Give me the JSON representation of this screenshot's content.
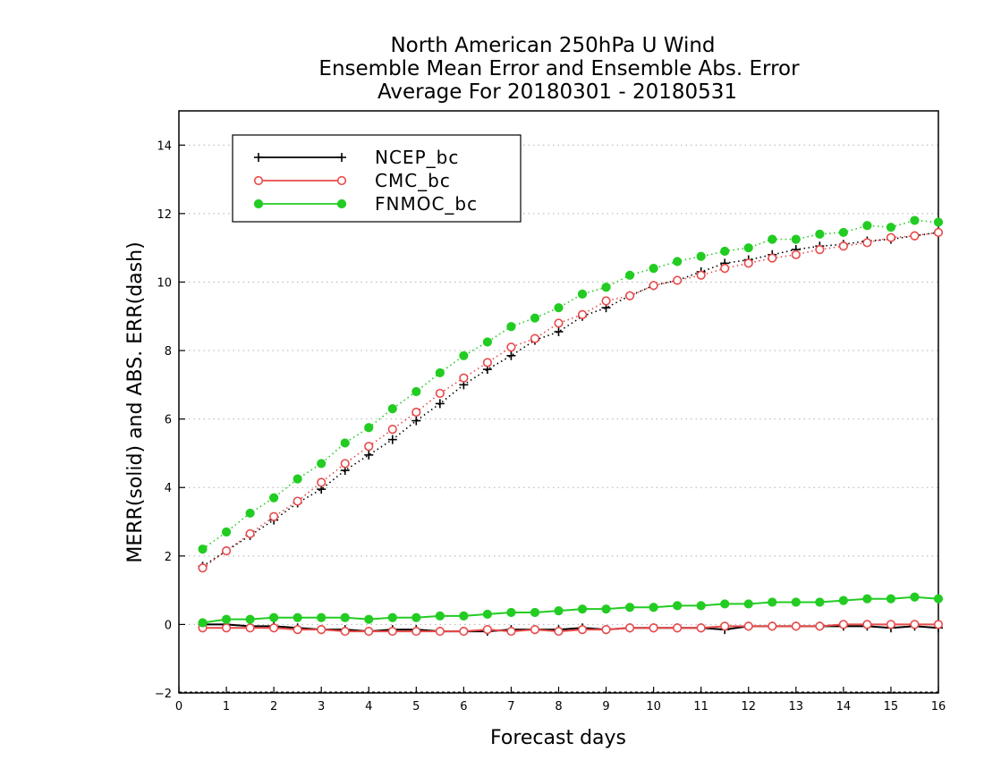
{
  "chart_data": {
    "type": "line",
    "title": [
      "North American 250hPa U Wind",
      "Ensemble Mean Error and Ensemble Abs. Error",
      "Average For 20180301 - 20180531"
    ],
    "xlabel": "Forecast days",
    "ylabel": "MERR(solid) and ABS. ERR(dash)",
    "xlim": [
      0,
      16
    ],
    "ylim": [
      -2,
      15
    ],
    "xticks": [
      "0",
      "1",
      "2",
      "3",
      "4",
      "5",
      "6",
      "7",
      "8",
      "9",
      "10",
      "11",
      "12",
      "13",
      "14",
      "15",
      "16"
    ],
    "yticks": [
      "−2",
      "0",
      "2",
      "4",
      "6",
      "8",
      "10",
      "12",
      "14"
    ],
    "grid": true,
    "legend_position": "top-left",
    "x": [
      0.5,
      1,
      1.5,
      2,
      2.5,
      3,
      3.5,
      4,
      4.5,
      5,
      5.5,
      6,
      6.5,
      7,
      7.5,
      8,
      8.5,
      9,
      9.5,
      10,
      10.5,
      11,
      11.5,
      12,
      12.5,
      13,
      13.5,
      14,
      14.5,
      15,
      15.5,
      16
    ],
    "series": [
      {
        "name": "NCEP_bc",
        "color": "#000000",
        "marker": "plus",
        "abs_err": [
          1.7,
          2.15,
          2.6,
          3.05,
          3.55,
          3.95,
          4.5,
          4.95,
          5.4,
          5.95,
          6.45,
          7.0,
          7.45,
          7.85,
          8.3,
          8.55,
          9.0,
          9.25,
          9.6,
          9.9,
          10.05,
          10.3,
          10.55,
          10.65,
          10.8,
          10.95,
          11.05,
          11.1,
          11.2,
          11.25,
          11.35,
          11.45
        ],
        "mean_err": [
          0.0,
          0.0,
          -0.05,
          -0.05,
          -0.1,
          -0.15,
          -0.15,
          -0.2,
          -0.15,
          -0.15,
          -0.2,
          -0.2,
          -0.2,
          -0.15,
          -0.15,
          -0.15,
          -0.1,
          -0.15,
          -0.1,
          -0.1,
          -0.1,
          -0.1,
          -0.15,
          -0.05,
          -0.05,
          -0.05,
          -0.05,
          -0.05,
          -0.05,
          -0.1,
          -0.05,
          -0.1
        ]
      },
      {
        "name": "CMC_bc",
        "color": "#e84a4a",
        "marker": "open-circle",
        "abs_err": [
          1.65,
          2.15,
          2.65,
          3.15,
          3.6,
          4.15,
          4.7,
          5.2,
          5.7,
          6.2,
          6.75,
          7.2,
          7.65,
          8.1,
          8.35,
          8.8,
          9.05,
          9.45,
          9.6,
          9.9,
          10.05,
          10.2,
          10.4,
          10.55,
          10.7,
          10.8,
          10.95,
          11.05,
          11.15,
          11.3,
          11.35,
          11.45
        ],
        "mean_err": [
          -0.1,
          -0.1,
          -0.1,
          -0.1,
          -0.15,
          -0.15,
          -0.2,
          -0.2,
          -0.2,
          -0.2,
          -0.2,
          -0.2,
          -0.15,
          -0.2,
          -0.15,
          -0.2,
          -0.15,
          -0.15,
          -0.1,
          -0.1,
          -0.1,
          -0.1,
          -0.05,
          -0.05,
          -0.05,
          -0.05,
          -0.05,
          0.0,
          0.0,
          0.0,
          0.0,
          0.0
        ]
      },
      {
        "name": "FNMOC_bc",
        "color": "#22cc22",
        "marker": "filled-circle",
        "abs_err": [
          2.2,
          2.7,
          3.25,
          3.7,
          4.25,
          4.7,
          5.3,
          5.75,
          6.3,
          6.8,
          7.35,
          7.85,
          8.25,
          8.7,
          8.95,
          9.25,
          9.65,
          9.85,
          10.2,
          10.4,
          10.6,
          10.75,
          10.9,
          11.0,
          11.25,
          11.25,
          11.4,
          11.45,
          11.65,
          11.6,
          11.8,
          11.75
        ],
        "mean_err": [
          0.05,
          0.15,
          0.15,
          0.2,
          0.2,
          0.2,
          0.2,
          0.15,
          0.2,
          0.2,
          0.25,
          0.25,
          0.3,
          0.35,
          0.35,
          0.4,
          0.45,
          0.45,
          0.5,
          0.5,
          0.55,
          0.55,
          0.6,
          0.6,
          0.65,
          0.65,
          0.65,
          0.7,
          0.75,
          0.75,
          0.8,
          0.75
        ]
      }
    ]
  }
}
